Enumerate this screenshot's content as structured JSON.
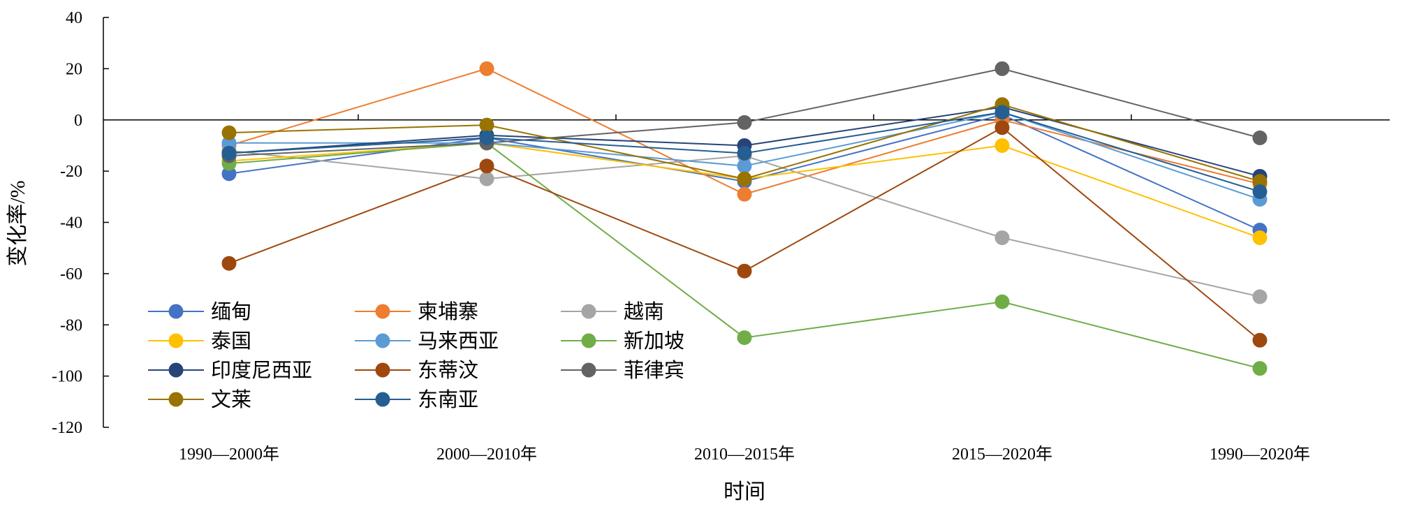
{
  "chart_data": {
    "type": "line",
    "title": "",
    "xlabel": "时间",
    "ylabel": "变化率/%",
    "ylim": [
      -120,
      40
    ],
    "yticks": [
      40,
      20,
      0,
      -20,
      -40,
      -60,
      -80,
      -100,
      -120
    ],
    "categories": [
      "1990—2000年",
      "2000—2010年",
      "2010—2015年",
      "2015—2020年",
      "1990—2020年"
    ],
    "legend_position": "lower-left",
    "grid": false,
    "series": [
      {
        "name": "缅甸",
        "color": "#4472C4",
        "values": [
          -21,
          -7,
          -24,
          2,
          -43
        ]
      },
      {
        "name": "柬埔寨",
        "color": "#ED7D31",
        "values": [
          -10,
          20,
          -29,
          0,
          -25
        ]
      },
      {
        "name": "越南",
        "color": "#A5A5A5",
        "values": [
          -12,
          -23,
          -14,
          -46,
          -69
        ]
      },
      {
        "name": "泰国",
        "color": "#FFC000",
        "values": [
          -16,
          -9,
          -23,
          -10,
          -46
        ]
      },
      {
        "name": "马来西亚",
        "color": "#5B9BD5",
        "values": [
          -9,
          -9,
          -18,
          3,
          -31
        ]
      },
      {
        "name": "新加坡",
        "color": "#70AD47",
        "values": [
          -17,
          -9,
          -85,
          -71,
          -97
        ]
      },
      {
        "name": "印度尼西亚",
        "color": "#264478",
        "values": [
          -13,
          -6,
          -10,
          5,
          -22
        ]
      },
      {
        "name": "东蒂汶",
        "color": "#9E480E",
        "values": [
          -56,
          -18,
          -59,
          -3,
          -86
        ]
      },
      {
        "name": "菲律宾",
        "color": "#636363",
        "values": [
          -14,
          -9,
          -1,
          20,
          -7
        ]
      },
      {
        "name": "文莱",
        "color": "#997300",
        "values": [
          -5,
          -2,
          -23,
          6,
          -24
        ]
      },
      {
        "name": "东南亚",
        "color": "#255E91",
        "values": [
          -13,
          -7,
          -13,
          3,
          -28
        ]
      }
    ]
  }
}
